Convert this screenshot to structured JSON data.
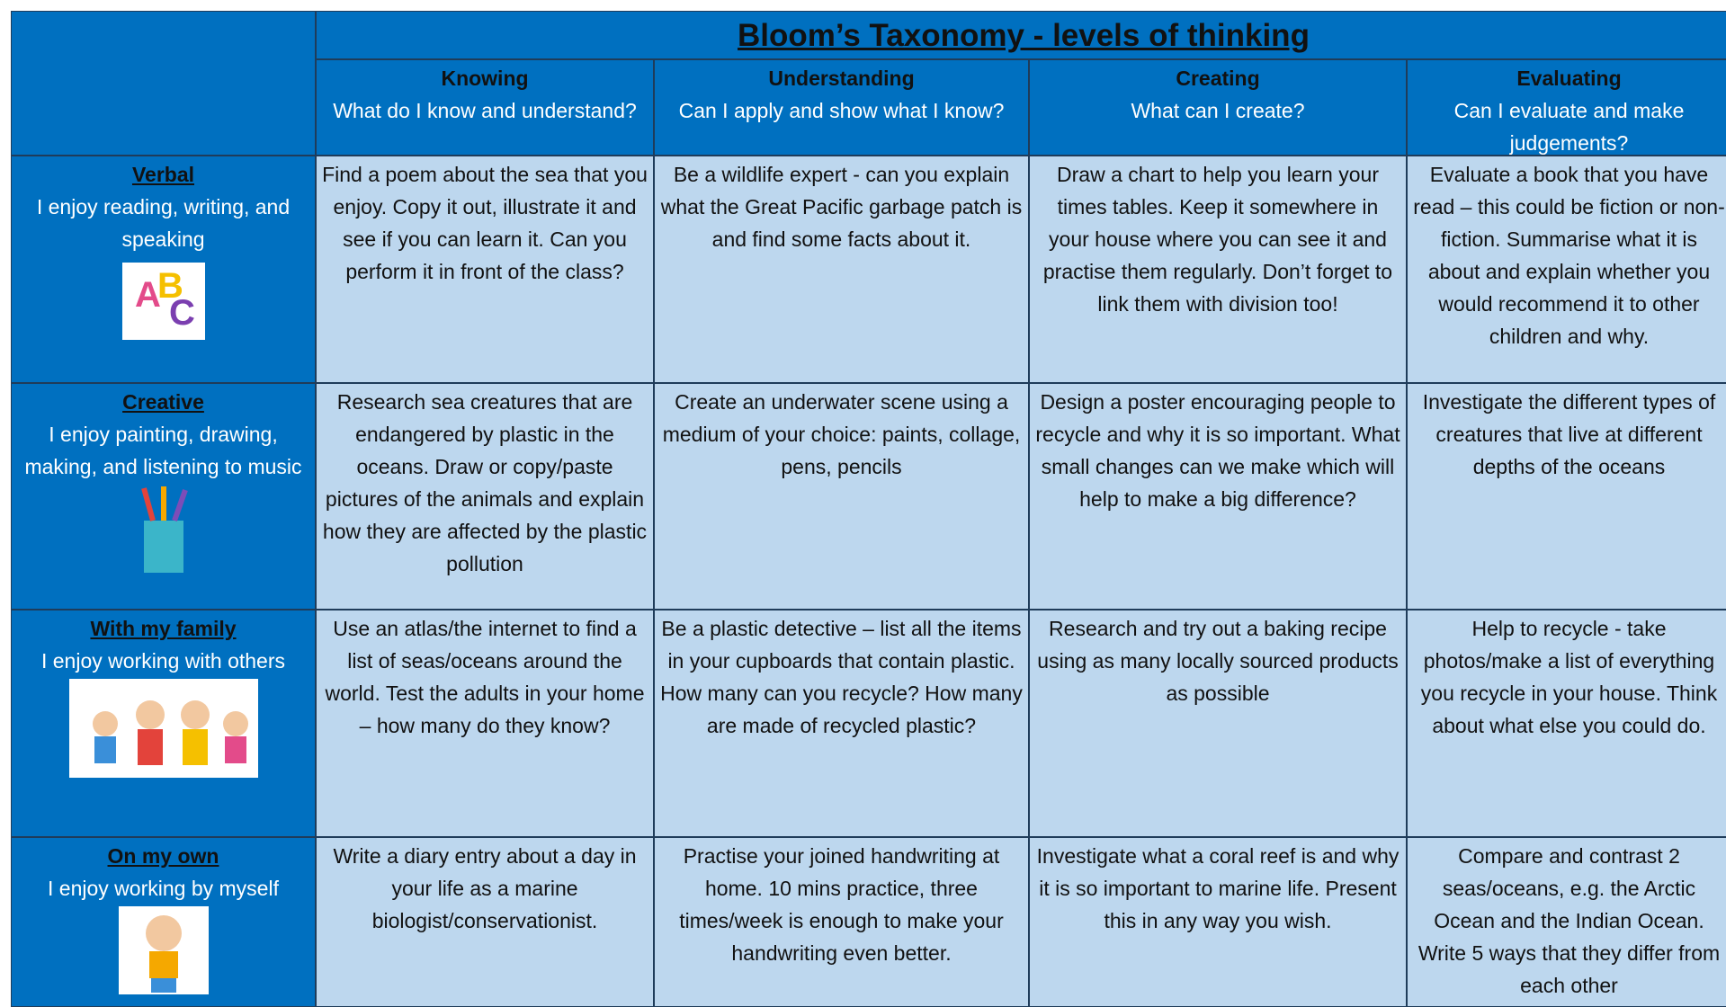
{
  "table": {
    "title": "Bloom’s Taxonomy - levels of thinking",
    "columns": [
      {
        "name": "Knowing",
        "question": "What do I know and understand?"
      },
      {
        "name": "Understanding",
        "question": "Can I apply and show what I know?"
      },
      {
        "name": "Creating",
        "question": "What can I create?"
      },
      {
        "name": "Evaluating",
        "question": "Can I evaluate and make judgements?"
      }
    ],
    "rows": [
      {
        "name": "Verbal",
        "description": "I enjoy reading, writing, and speaking",
        "cells": [
          "Find a poem about the sea that you enjoy. Copy it out, illustrate it and see if you can learn it. Can you perform it in front of the class?",
          "Be a wildlife expert - can you explain what the Great Pacific garbage patch is and find some facts about it.",
          "Draw a chart to help you learn your times tables. Keep it somewhere in your house where you can see it and practise them regularly. Don’t forget to link them with division too!",
          "Evaluate a book that you have read – this could be fiction or non-fiction. Summarise what it is about and explain whether you would recommend it to other children and why."
        ]
      },
      {
        "name": "Creative",
        "description": "I enjoy painting, drawing, making, and listening to music",
        "cells": [
          "Research sea creatures that are endangered by plastic in the oceans. Draw or copy/paste pictures of the animals and explain how they are affected by the plastic pollution",
          "Create an underwater scene using a medium of your choice: paints, collage, pens, pencils",
          "Design a poster encouraging people to recycle and why it is so important. What small changes can we make which will help to make a big difference?",
          "Investigate the different types of creatures that live at different depths of the oceans"
        ]
      },
      {
        "name": "With my family",
        "description": "I enjoy working with others",
        "cells": [
          "Use an atlas/the internet to find a list of seas/oceans around the world. Test the adults in your home – how many do they know?",
          "Be a plastic detective – list all the items in your cupboards that contain plastic. How many can you recycle? How many are made of recycled plastic?",
          "Research and try out a baking recipe using as many locally sourced products as possible",
          "Help to recycle - take photos/make a list of everything you recycle in your house. Think about what else you could do."
        ]
      },
      {
        "name": "On my own",
        "description": "I enjoy working by myself",
        "cells": [
          "Write a diary entry about a day in your life as a marine biologist/conservationist.",
          "Practise your joined handwriting at home. 10 mins practice, three times/week is enough to make your handwriting even better.",
          "Investigate what a coral reef is and why it is so important to marine life. Present this in any way you wish.",
          "Compare and contrast 2 seas/oceans, e.g. the Arctic Ocean and the Indian Ocean. Write 5 ways that they differ from each other"
        ]
      }
    ]
  }
}
